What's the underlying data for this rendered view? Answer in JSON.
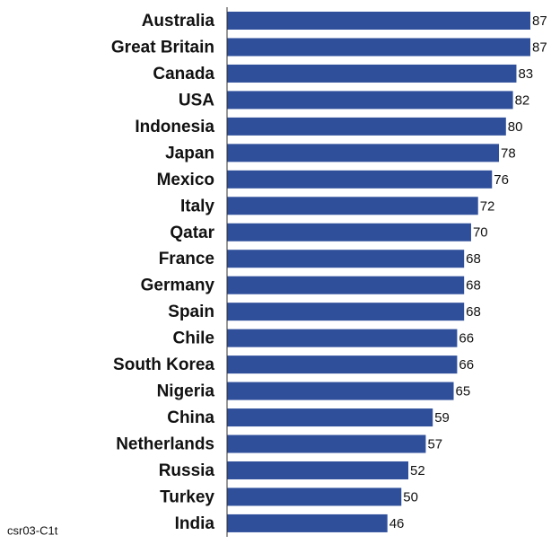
{
  "chart_data": {
    "type": "bar",
    "orientation": "horizontal",
    "categories": [
      "Australia",
      "Great Britain",
      "Canada",
      "USA",
      "Indonesia",
      "Japan",
      "Mexico",
      "Italy",
      "Qatar",
      "France",
      "Germany",
      "Spain",
      "Chile",
      "South Korea",
      "Nigeria",
      "China",
      "Netherlands",
      "Russia",
      "Turkey",
      "India"
    ],
    "values": [
      87,
      87,
      83,
      82,
      80,
      78,
      76,
      72,
      70,
      68,
      68,
      68,
      66,
      66,
      65,
      59,
      57,
      52,
      50,
      46
    ],
    "color": "#2f4f9b",
    "footnote": "csr03-C1t"
  }
}
